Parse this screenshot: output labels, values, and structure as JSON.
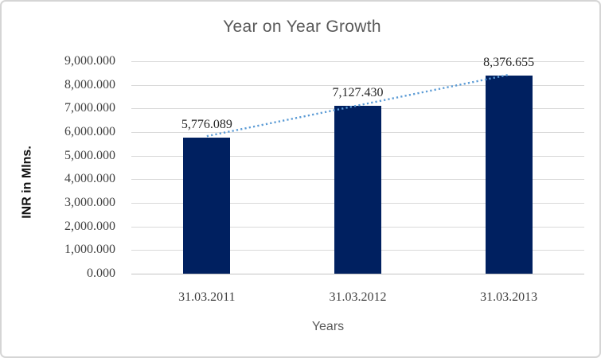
{
  "chart_data": {
    "type": "bar",
    "title": "Year on Year Growth",
    "xlabel": "Years",
    "ylabel": "INR in Mlns.",
    "categories": [
      "31.03.2011",
      "31.03.2012",
      "31.03.2013"
    ],
    "series": [
      {
        "name": "INR in Mlns.",
        "values": [
          5776.089,
          7127.43,
          8376.655
        ]
      }
    ],
    "values": [
      5776.089,
      7127.43,
      8376.655
    ],
    "data_labels": [
      "5,776.089",
      "7,127.430",
      "8,376.655"
    ],
    "ytick_values": [
      0,
      1000,
      2000,
      3000,
      4000,
      5000,
      6000,
      7000,
      8000,
      9000
    ],
    "ytick_labels": [
      "0.000",
      "1,000.000",
      "2,000.000",
      "3,000.000",
      "4,000.000",
      "5,000.000",
      "6,000.000",
      "7,000.000",
      "8,000.000",
      "9,000.000"
    ],
    "ylim": [
      0,
      9000
    ],
    "grid": true,
    "legend": "none",
    "trendline": {
      "type": "linear",
      "style": "dotted"
    },
    "colors": {
      "bar": "#002060",
      "trendline": "#5b9bd5",
      "title": "#595959",
      "axis_title": "#595959",
      "ylabel_text": "#111111",
      "tick_label": "#404040",
      "gridline": "#d9d9d9"
    }
  }
}
